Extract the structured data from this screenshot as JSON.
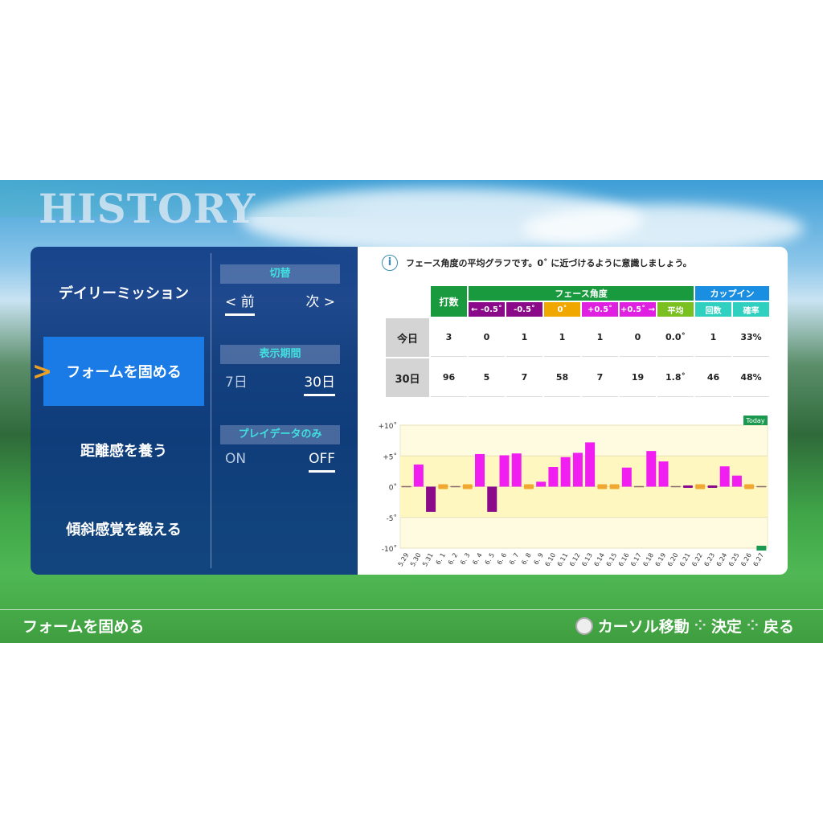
{
  "header": {
    "title": "HISTORY"
  },
  "menu": {
    "items": [
      {
        "label": "デイリーミッション"
      },
      {
        "label": "フォームを固める",
        "selected": true
      },
      {
        "label": "距離感を養う"
      },
      {
        "label": "傾斜感覚を鍛える"
      }
    ]
  },
  "options": {
    "switch": {
      "label": "切替",
      "prev": "< 前",
      "next": "次 >",
      "selected": "prev"
    },
    "period": {
      "label": "表示期間",
      "a": "7日",
      "b": "30日",
      "selected": "30日"
    },
    "playdata": {
      "label": "プレイデータのみ",
      "a": "ON",
      "b": "OFF",
      "selected": "OFF"
    }
  },
  "info": {
    "icon": "info-icon",
    "text": "フェース角度の平均グラフです。0˚ に近づけるように意識しましょう。"
  },
  "table": {
    "h_shots": "打数",
    "h_face": "フェース角度",
    "h_cup": "カップイン",
    "cols": [
      "← -0.5˚",
      "-0.5˚",
      "0˚",
      "+0.5˚",
      "+0.5˚ →",
      "平均",
      "回数",
      "確率"
    ],
    "col_colors": [
      "#8a0a8a",
      "#8a0a8a",
      "#f0a800",
      "#e020e0",
      "#e020e0",
      "#7ac020",
      "#30d0c0",
      "#30d0c0"
    ],
    "rows": [
      {
        "label": "今日",
        "values": [
          "3",
          "0",
          "1",
          "1",
          "1",
          "0",
          "0.0˚",
          "1",
          "33%"
        ]
      },
      {
        "label": "30日",
        "values": [
          "96",
          "5",
          "7",
          "58",
          "7",
          "19",
          "1.8˚",
          "46",
          "48%"
        ]
      }
    ]
  },
  "chart_data": {
    "type": "bar",
    "today_label": "Today",
    "yticks": [
      "+10˚",
      "+5˚",
      "0˚",
      "-5˚",
      "-10˚"
    ],
    "ylim": [
      -10,
      10
    ],
    "categories": [
      "5.29",
      "5.30",
      "5.31",
      "6. 1",
      "6. 2",
      "6. 3",
      "6. 4",
      "6. 5",
      "6. 6",
      "6. 7",
      "6. 8",
      "6. 9",
      "6.10",
      "6.11",
      "6.12",
      "6.13",
      "6.14",
      "6.15",
      "6.16",
      "6.17",
      "6.18",
      "6.19",
      "6.20",
      "6.21",
      "6.22",
      "6.23",
      "6.24",
      "6.25",
      "6.26",
      "6.27"
    ],
    "values": [
      null,
      3.6,
      -4.1,
      0,
      null,
      0,
      5.3,
      -4.1,
      5.1,
      5.4,
      0,
      0.8,
      3.2,
      4.8,
      5.5,
      7.2,
      0,
      0,
      3.1,
      null,
      5.8,
      4.1,
      null,
      -0.2,
      0,
      -0.2,
      3.3,
      1.8,
      0,
      null
    ],
    "colors": {
      "positive": "#f01ef0",
      "negative": "#8a0a8a",
      "zero": "#f0a830",
      "today": "#1a9a50",
      "band": "#fff7c0",
      "bg": "#fffbe0"
    }
  },
  "footer": {
    "current": "フォームを固める",
    "hints": [
      {
        "icon": "stick-icon",
        "label": "カーソル移動"
      },
      {
        "icon": "buttons-a-icon",
        "label": "決定"
      },
      {
        "icon": "buttons-b-icon",
        "label": "戻る"
      }
    ]
  }
}
